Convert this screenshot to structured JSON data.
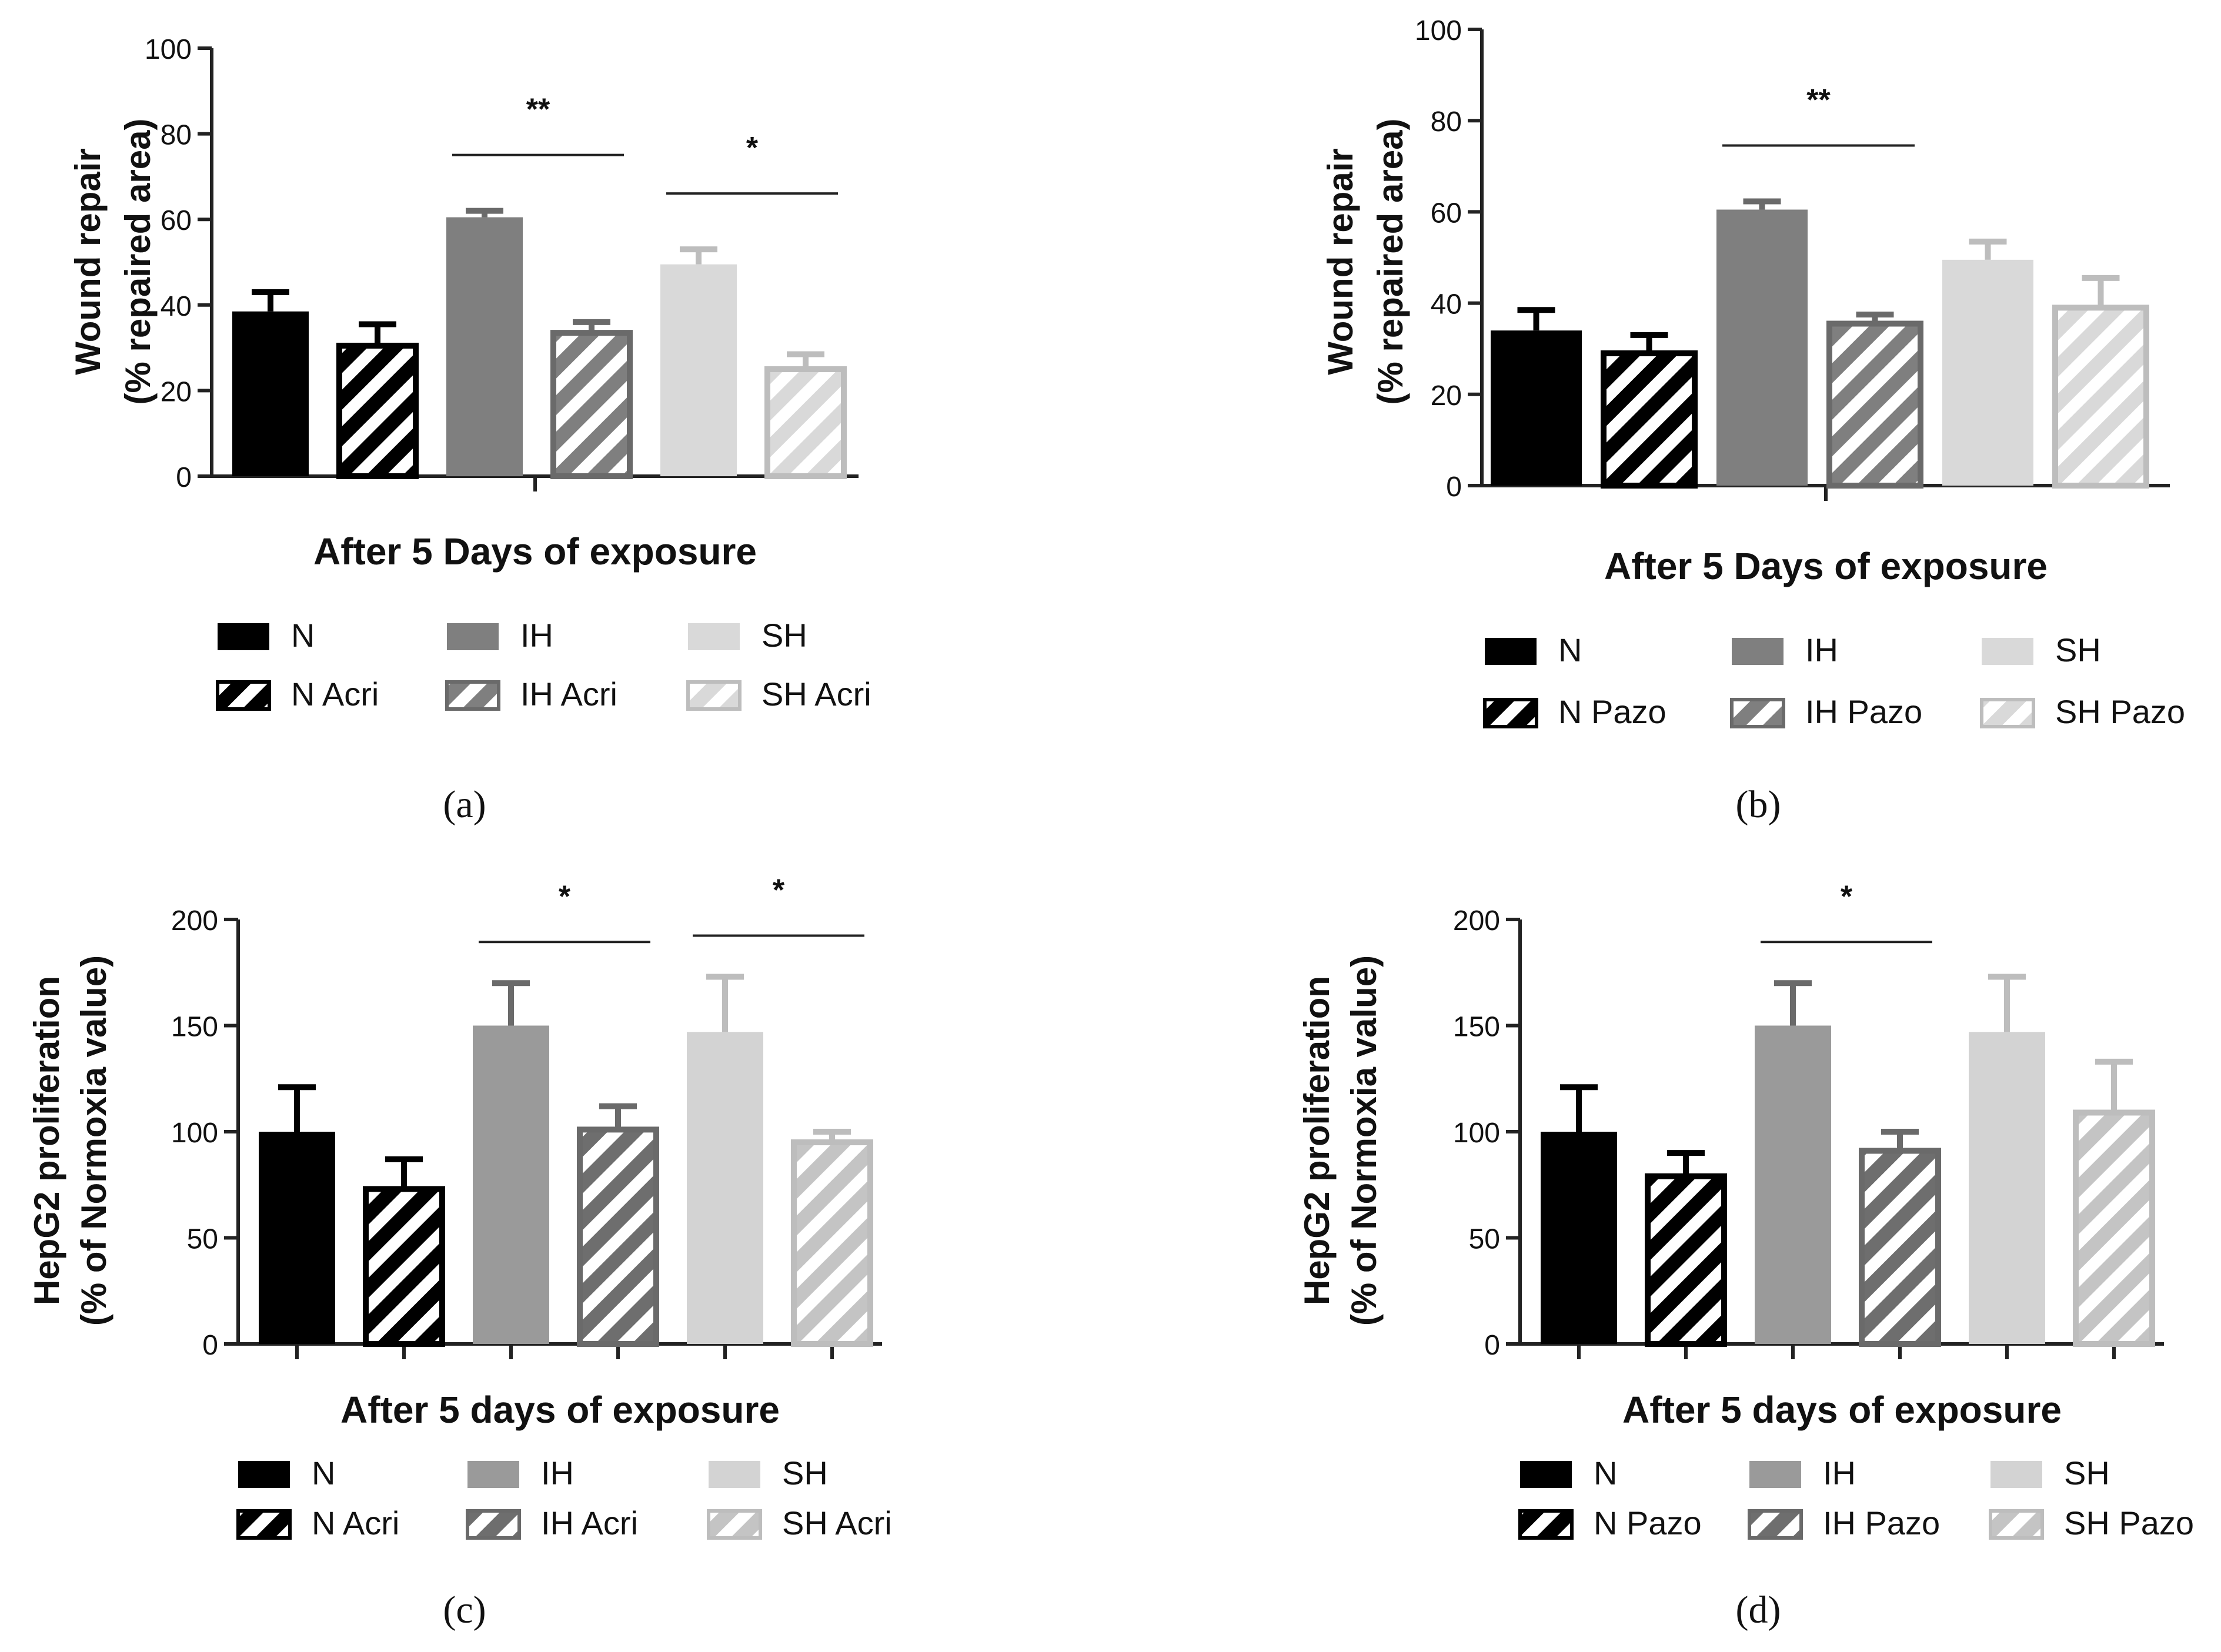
{
  "colors": {
    "N": "#000000",
    "IH": "#7f7f7f",
    "SH": "#d9d9d9",
    "IH_c": "#9a9a9a",
    "SH_c": "#d3d3d3",
    "hatch_bg_N": "#ffffff",
    "hatch_bg_IH": "#ffffff",
    "hatch_bg_SH": "#ffffff"
  },
  "chart_data": [
    {
      "type": "bar",
      "panel_label": "(a)",
      "xlabel": "After 5 Days of exposure",
      "ylabel": [
        "Wound repair",
        "(% repaired area)"
      ],
      "ylim": [
        0,
        100
      ],
      "yticks": [
        "0",
        "20",
        "40",
        "60",
        "80",
        "100"
      ],
      "categories": [
        "N",
        "N Acri",
        "IH",
        "IH Acri",
        "SH",
        "SH Acri"
      ],
      "values": [
        38.5,
        30.5,
        60.5,
        33.5,
        49.5,
        25
      ],
      "errors": [
        4.5,
        5,
        1.5,
        2.5,
        3.5,
        3.5
      ],
      "significance": [
        {
          "from": 2,
          "to": 3,
          "label": "**"
        },
        {
          "from": 4,
          "to": 5,
          "label": "*"
        }
      ],
      "legend": {
        "placement": "bottom",
        "rows": [
          [
            "N",
            "IH",
            "SH"
          ],
          [
            "N Acri",
            "IH Acri",
            "SH Acri"
          ]
        ]
      }
    },
    {
      "type": "bar",
      "panel_label": "(b)",
      "xlabel": "After 5 Days of exposure",
      "ylabel": [
        "Wound repair",
        "(% repaired area)"
      ],
      "ylim": [
        0,
        100
      ],
      "yticks": [
        "0",
        "20",
        "40",
        "60",
        "80",
        "100"
      ],
      "categories": [
        "N",
        "N Pazo",
        "IH",
        "IH Pazo",
        "SH",
        "SH Pazo"
      ],
      "values": [
        34,
        29,
        60.5,
        35.5,
        49.5,
        39
      ],
      "errors": [
        4.5,
        4,
        1.8,
        2,
        4,
        6.5
      ],
      "significance": [
        {
          "from": 2,
          "to": 3,
          "label": "**"
        }
      ],
      "legend": {
        "placement": "bottom",
        "rows": [
          [
            "N",
            "IH",
            "SH"
          ],
          [
            "N Pazo",
            "IH Pazo",
            "SH Pazo"
          ]
        ]
      }
    },
    {
      "type": "bar",
      "panel_label": "(c)",
      "xlabel": "After 5 days of exposure",
      "ylabel": [
        "HepG2 proliferation",
        "(% of Normoxia value)"
      ],
      "ylim": [
        0,
        200
      ],
      "yticks": [
        "0",
        "50",
        "100",
        "150",
        "200"
      ],
      "categories": [
        "N",
        "N Acri",
        "IH",
        "IH Acri",
        "SH",
        "SH Acri"
      ],
      "values": [
        100,
        73,
        150,
        101,
        147,
        95
      ],
      "errors": [
        21,
        14,
        20,
        11,
        26,
        5
      ],
      "significance": [
        {
          "from": 2,
          "to": 3,
          "label": "*"
        },
        {
          "from": 4,
          "to": 5,
          "label": "*"
        }
      ],
      "legend": {
        "placement": "bottom",
        "rows": [
          [
            "N",
            "IH",
            "SH"
          ],
          [
            "N Acri",
            "IH Acri",
            "SH Acri"
          ]
        ]
      }
    },
    {
      "type": "bar",
      "panel_label": "(d)",
      "xlabel": "After 5 days of exposure",
      "ylabel": [
        "HepG2 proliferation",
        "(% of Normoxia value)"
      ],
      "ylim": [
        0,
        200
      ],
      "yticks": [
        "0",
        "50",
        "100",
        "150",
        "200"
      ],
      "categories": [
        "N",
        "N Pazo",
        "IH",
        "IH Pazo",
        "SH",
        "SH Pazo"
      ],
      "values": [
        100,
        79,
        150,
        91,
        147,
        109
      ],
      "errors": [
        21,
        11,
        20,
        9,
        26,
        24
      ],
      "significance": [
        {
          "from": 2,
          "to": 3,
          "label": "*"
        }
      ],
      "legend": {
        "placement": "bottom",
        "rows": [
          [
            "N",
            "IH",
            "SH"
          ],
          [
            "N Pazo",
            "IH Pazo",
            "SH Pazo"
          ]
        ]
      }
    }
  ]
}
